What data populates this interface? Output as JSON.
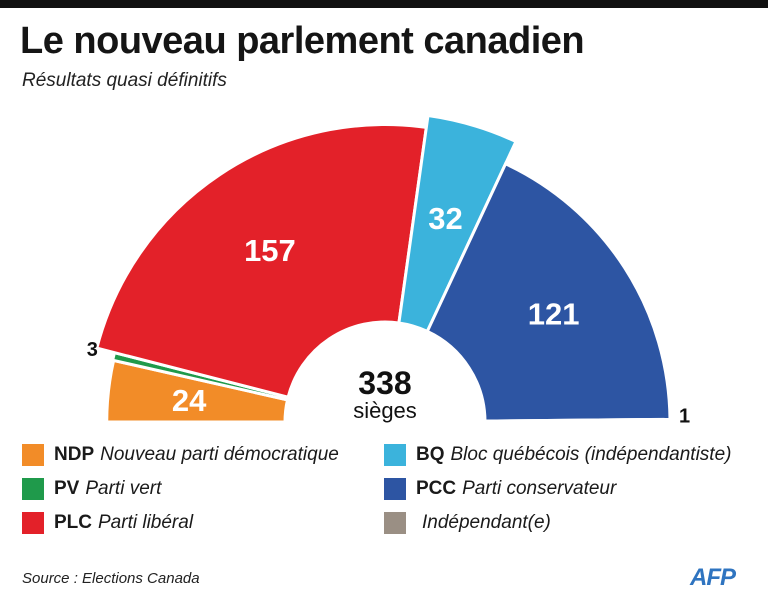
{
  "title": "Le nouveau parlement canadien",
  "subtitle": "Résultats quasi définitifs",
  "chart_data": {
    "type": "pie",
    "variant": "parliament-half-donut",
    "title": "Le nouveau parlement canadien",
    "subtitle": "Résultats quasi définitifs",
    "total": 338,
    "total_label": "338",
    "total_unit": "sièges",
    "series": [
      {
        "abbr": "NDP",
        "name": "Nouveau parti démocratique",
        "value": 24,
        "label": "24",
        "color": "#f28c28",
        "label_inside": true
      },
      {
        "abbr": "PV",
        "name": "Parti vert",
        "value": 3,
        "label": "3",
        "color": "#1f9a4b",
        "label_inside": false
      },
      {
        "abbr": "PLC",
        "name": "Parti libéral",
        "value": 157,
        "label": "157",
        "color": "#e32129",
        "label_inside": true
      },
      {
        "abbr": "BQ",
        "name": "Bloc québécois (indépendantiste)",
        "value": 32,
        "label": "32",
        "color": "#3bb3dc",
        "label_inside": true
      },
      {
        "abbr": "PCC",
        "name": "Parti conservateur",
        "value": 121,
        "label": "121",
        "color": "#2d55a3",
        "label_inside": true
      },
      {
        "abbr": "",
        "name": "Indépendant(e)",
        "value": 1,
        "label": "1",
        "color": "#9a8f84",
        "label_inside": false
      }
    ]
  },
  "footer": {
    "source": "Source : Elections Canada",
    "logo": "AFP"
  }
}
